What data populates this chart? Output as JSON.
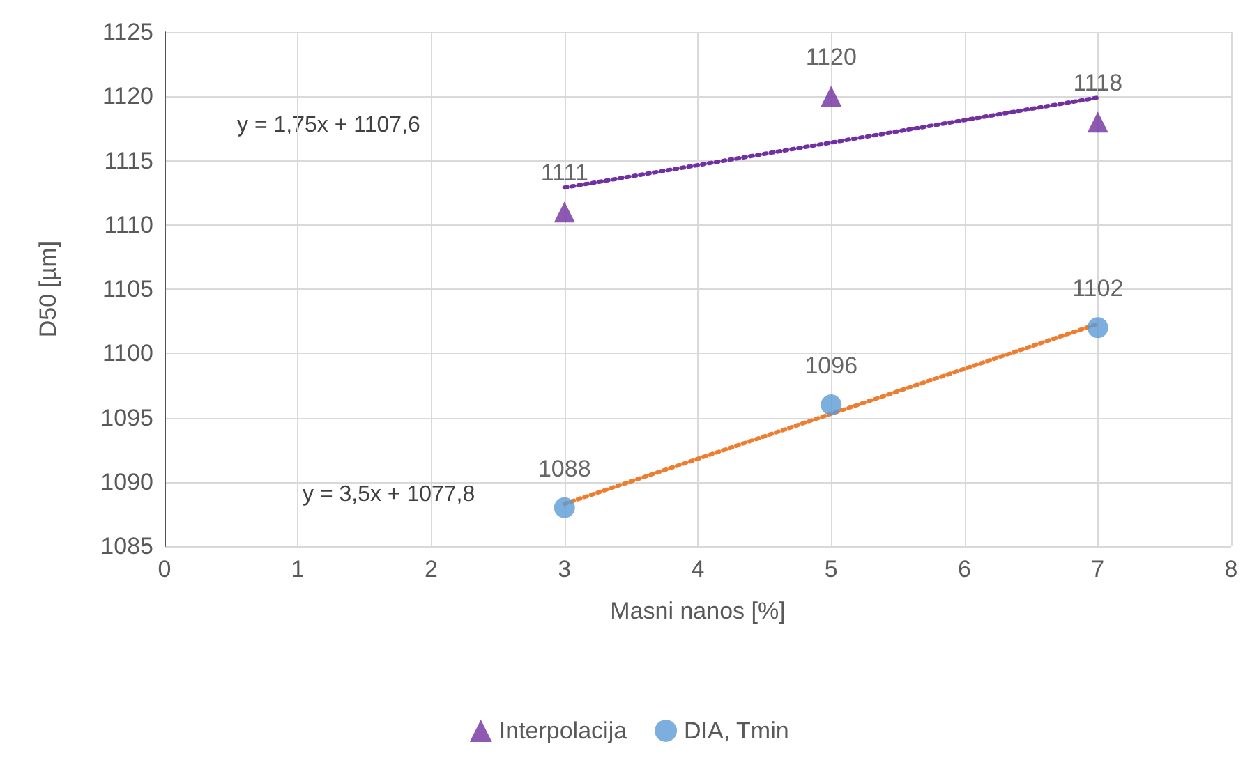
{
  "chart_data": {
    "type": "scatter",
    "xlabel": "Masni nanos [%]",
    "ylabel": "D50 [µm]",
    "series": [
      {
        "name": "Interpolacija",
        "color": "#7030a0",
        "x": [
          3,
          5,
          7
        ],
        "values": [
          1111,
          1120,
          1118
        ],
        "marker": "triangle",
        "value_labels": [
          "1111",
          "1120",
          "1118"
        ]
      },
      {
        "name": "DIA, Tmin",
        "color": "#5b9bd5",
        "x": [
          3,
          5,
          7
        ],
        "values": [
          1088,
          1096,
          1102
        ],
        "marker": "circle",
        "value_labels": [
          "1088",
          "1096",
          "1102"
        ]
      },
      {
        "type": "line",
        "color": "#7030a0",
        "x": [
          3,
          7
        ],
        "values": [
          1112.9,
          1119.9
        ],
        "line_style": "dotted",
        "marker": "none"
      },
      {
        "type": "line",
        "color": "#ed7d31",
        "x": [
          3,
          7
        ],
        "values": [
          1088.3,
          1102.3
        ],
        "line_style": "dotted",
        "marker": "none"
      }
    ],
    "xlim": [
      0,
      8
    ],
    "xticks": [
      0,
      1,
      2,
      3,
      4,
      5,
      6,
      7,
      8
    ],
    "ylim": [
      1085,
      1125
    ],
    "yticks": [
      1085,
      1090,
      1095,
      1100,
      1105,
      1110,
      1115,
      1120,
      1125
    ],
    "annotations": [
      "y = 1,75x + 1107,6",
      "y = 3,5x + 1077,8"
    ],
    "grid": true,
    "legend": "bottom"
  }
}
